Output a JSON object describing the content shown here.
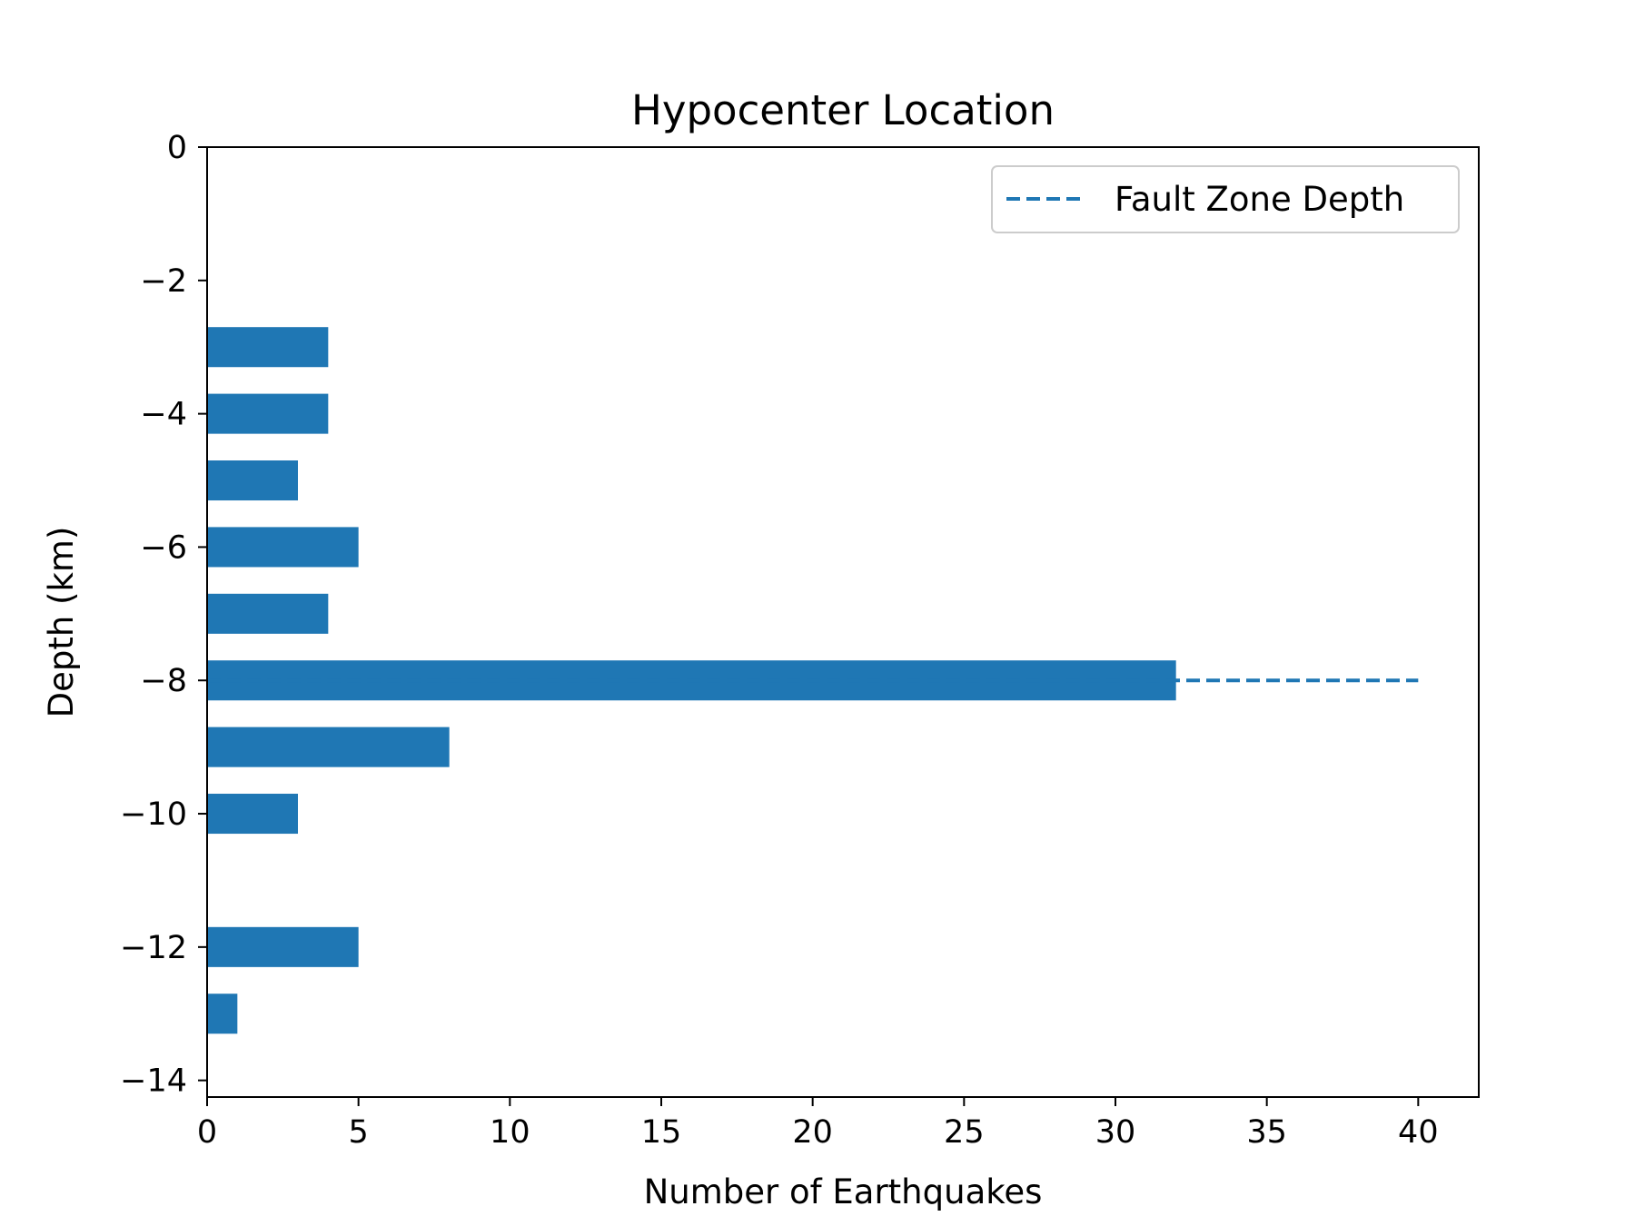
{
  "chart_data": {
    "type": "bar",
    "orientation": "horizontal",
    "title": "Hypocenter Location",
    "xlabel": "Number of Earthquakes",
    "ylabel": "Depth (km)",
    "xlim": [
      0,
      42
    ],
    "ylim": [
      -14.25,
      0
    ],
    "xticks": [
      0,
      5,
      10,
      15,
      20,
      25,
      30,
      35,
      40
    ],
    "xtick_labels": [
      "0",
      "5",
      "10",
      "15",
      "20",
      "25",
      "30",
      "35",
      "40"
    ],
    "yticks": [
      0,
      -2,
      -4,
      -6,
      -8,
      -10,
      -12,
      -14
    ],
    "ytick_labels": [
      "0",
      "−2",
      "−4",
      "−6",
      "−8",
      "−10",
      "−12",
      "−14"
    ],
    "grid": false,
    "bar_color": "#1f77b4",
    "bar_height": 0.6,
    "bars": [
      {
        "depth": -3,
        "count": 4
      },
      {
        "depth": -4,
        "count": 4
      },
      {
        "depth": -5,
        "count": 3
      },
      {
        "depth": -6,
        "count": 5
      },
      {
        "depth": -7,
        "count": 4
      },
      {
        "depth": -8,
        "count": 32
      },
      {
        "depth": -9,
        "count": 8
      },
      {
        "depth": -10,
        "count": 3
      },
      {
        "depth": -12,
        "count": 5
      },
      {
        "depth": -13,
        "count": 1
      }
    ],
    "fault_zone_line": {
      "name": "Fault Zone Depth",
      "depth": -8,
      "x": [
        0,
        40
      ],
      "style": "dashed",
      "color": "#1f77b4"
    },
    "legend": {
      "position": "top-right",
      "entries": [
        "Fault Zone Depth"
      ]
    }
  }
}
